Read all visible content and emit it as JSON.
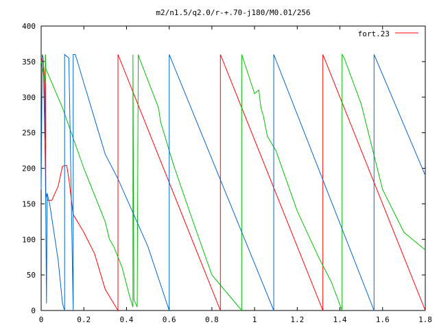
{
  "chart_data": {
    "type": "line",
    "title": "m2/n1.5/q2.0/r-+.70-j180/M0.01/256",
    "xlabel": "",
    "ylabel": "",
    "xlim": [
      0,
      1.8
    ],
    "ylim": [
      0,
      400
    ],
    "x_ticks": [
      0,
      0.2,
      0.4,
      0.6,
      0.8,
      1,
      1.2,
      1.4,
      1.6,
      1.8
    ],
    "x_tick_labels": [
      "0",
      "0.2",
      "0.4",
      "0.6",
      "0.8",
      "1",
      "1.2",
      "1.4",
      "1.6",
      "1.8"
    ],
    "y_ticks": [
      0,
      50,
      100,
      150,
      200,
      250,
      300,
      350,
      400
    ],
    "y_tick_labels": [
      "0",
      "50",
      "100",
      "150",
      "200",
      "250",
      "300",
      "350",
      "400"
    ],
    "grid": false,
    "legend": {
      "position": "top-right",
      "entries": [
        "fort.23"
      ]
    },
    "series": [
      {
        "name": "fort.23",
        "color": "#ff0000",
        "points": [
          [
            0.0,
            355
          ],
          [
            0.01,
            350
          ],
          [
            0.015,
            330
          ],
          [
            0.02,
            240
          ],
          [
            0.02,
            360
          ],
          [
            0.022,
            165
          ],
          [
            0.03,
            155
          ],
          [
            0.05,
            155
          ],
          [
            0.08,
            175
          ],
          [
            0.1,
            203
          ],
          [
            0.12,
            204
          ],
          [
            0.13,
            185
          ],
          [
            0.15,
            135
          ],
          [
            0.2,
            110
          ],
          [
            0.25,
            80
          ],
          [
            0.3,
            30
          ],
          [
            0.36,
            0
          ],
          [
            0.36,
            360
          ],
          [
            0.84,
            0
          ],
          [
            0.84,
            360
          ],
          [
            1.32,
            0
          ],
          [
            1.32,
            360
          ],
          [
            1.8,
            0
          ]
        ]
      },
      {
        "color": "#00c000",
        "points": [
          [
            0.0,
            350
          ],
          [
            0.02,
            320
          ],
          [
            0.02,
            360
          ],
          [
            0.022,
            340
          ],
          [
            0.1,
            285
          ],
          [
            0.2,
            200
          ],
          [
            0.3,
            125
          ],
          [
            0.32,
            100
          ],
          [
            0.34,
            90
          ],
          [
            0.38,
            60
          ],
          [
            0.41,
            25
          ],
          [
            0.43,
            5
          ],
          [
            0.43,
            360
          ],
          [
            0.435,
            15
          ],
          [
            0.45,
            5
          ],
          [
            0.455,
            360
          ],
          [
            0.46,
            355
          ],
          [
            0.55,
            285
          ],
          [
            0.56,
            265
          ],
          [
            0.62,
            205
          ],
          [
            0.7,
            135
          ],
          [
            0.8,
            50
          ],
          [
            0.94,
            0
          ],
          [
            0.94,
            360
          ],
          [
            1.0,
            305
          ],
          [
            1.02,
            310
          ],
          [
            1.03,
            285
          ],
          [
            1.04,
            275
          ],
          [
            1.06,
            245
          ],
          [
            1.1,
            225
          ],
          [
            1.2,
            140
          ],
          [
            1.3,
            75
          ],
          [
            1.36,
            40
          ],
          [
            1.41,
            0
          ],
          [
            1.41,
            360
          ],
          [
            1.42,
            355
          ],
          [
            1.5,
            290
          ],
          [
            1.6,
            170
          ],
          [
            1.7,
            110
          ],
          [
            1.8,
            85
          ]
        ]
      },
      {
        "color": "#0066cc",
        "points": [
          [
            0.0,
            170
          ],
          [
            0.005,
            360
          ],
          [
            0.01,
            355
          ],
          [
            0.02,
            195
          ],
          [
            0.025,
            10
          ],
          [
            0.028,
            165
          ],
          [
            0.04,
            150
          ],
          [
            0.08,
            70
          ],
          [
            0.1,
            10
          ],
          [
            0.11,
            0
          ],
          [
            0.11,
            360
          ],
          [
            0.13,
            355
          ],
          [
            0.15,
            0
          ],
          [
            0.15,
            360
          ],
          [
            0.16,
            360
          ],
          [
            0.2,
            320
          ],
          [
            0.26,
            260
          ],
          [
            0.3,
            220
          ],
          [
            0.36,
            185
          ],
          [
            0.5,
            90
          ],
          [
            0.6,
            0
          ],
          [
            0.6,
            360
          ],
          [
            1.09,
            0
          ],
          [
            1.09,
            360
          ],
          [
            1.56,
            0
          ],
          [
            1.56,
            360
          ],
          [
            1.8,
            190
          ]
        ]
      }
    ]
  }
}
